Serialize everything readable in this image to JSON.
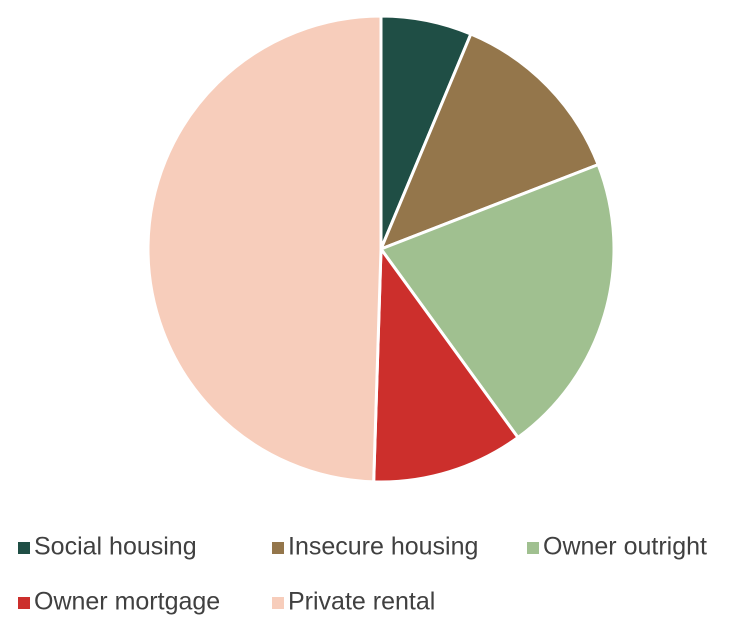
{
  "chart_data": {
    "type": "pie",
    "categories": [
      "Social housing",
      "Insecure housing",
      "Owner outright",
      "Owner mortgage",
      "Private rental"
    ],
    "values": [
      6.3,
      12.8,
      20.9,
      10.5,
      49.5
    ],
    "colors": [
      "#1f4e45",
      "#94764b",
      "#a0c090",
      "#cc2f2c",
      "#f7cdbb"
    ],
    "legend": "bottom"
  }
}
